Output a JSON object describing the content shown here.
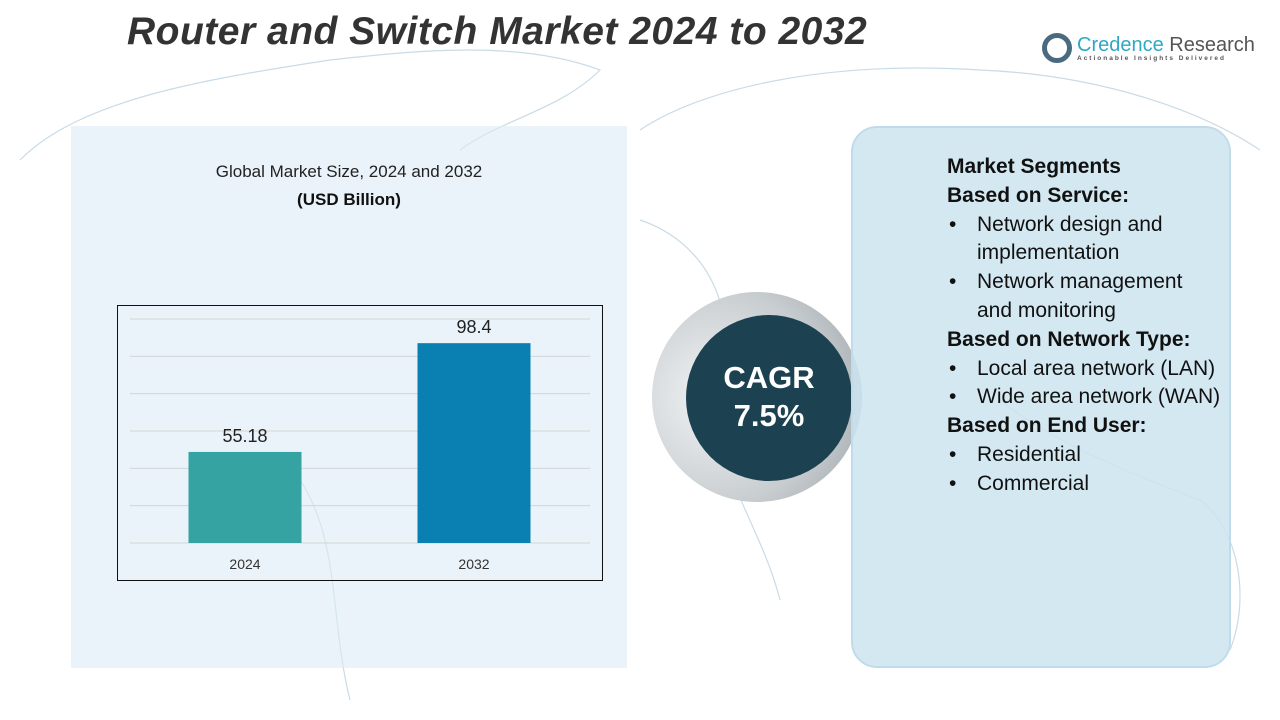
{
  "title": "Router and Switch Market 2024 to 2032",
  "logo": {
    "name_a": "Credence",
    "name_b": " Research",
    "tagline": "Actionable Insights Delivered"
  },
  "chart_data": {
    "type": "bar",
    "title": "Global Market Size, 2024 and 2032",
    "subtitle": "(USD Billion)",
    "categories": [
      "2024",
      "2032"
    ],
    "values": [
      55.18,
      98.4
    ],
    "value_labels": [
      "55.18",
      "98.4"
    ],
    "colors": [
      "#36a3a3",
      "#0a80b2"
    ],
    "xlabel": "",
    "ylabel": "",
    "ylim": [
      19,
      108
    ],
    "grid": true
  },
  "cagr": {
    "label": "CAGR",
    "value": "7.5%"
  },
  "segments": {
    "heading": "Market Segments",
    "groups": [
      {
        "title": "Based on Service:",
        "items": [
          "Network design and implementation",
          "Network management and monitoring"
        ]
      },
      {
        "title": "Based on Network Type:",
        "items": [
          "Local area network (LAN)",
          "Wide area network (WAN)"
        ]
      },
      {
        "title": "Based on End User:",
        "items": [
          "Residential",
          "Commercial"
        ]
      }
    ]
  }
}
